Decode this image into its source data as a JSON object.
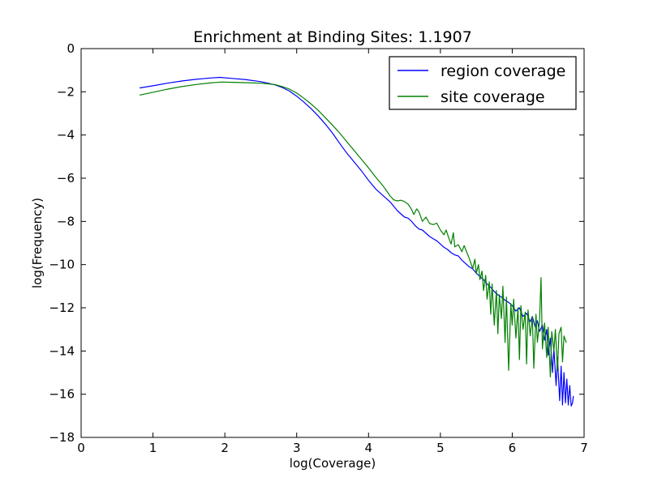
{
  "window": {
    "background": "#ffffff",
    "axes_background": "#ffffff",
    "spine_color": "#000000"
  },
  "chart_data": {
    "type": "line",
    "title": "Enrichment at Binding Sites: 1.1907",
    "xlabel": "log(Coverage)",
    "ylabel": "log(Frequency)",
    "xlim": [
      0,
      7
    ],
    "ylim": [
      -18,
      0
    ],
    "x_ticks": [
      0,
      1,
      2,
      3,
      4,
      5,
      6,
      7
    ],
    "y_ticks": [
      0,
      -2,
      -4,
      -6,
      -8,
      -10,
      -12,
      -14,
      -16,
      -18
    ],
    "grid": false,
    "legend": {
      "position": "upper right"
    },
    "series": [
      {
        "name": "region coverage",
        "color": "#0000ff",
        "points": [
          [
            0.82,
            -1.82
          ],
          [
            1.0,
            -1.72
          ],
          [
            1.2,
            -1.6
          ],
          [
            1.4,
            -1.5
          ],
          [
            1.6,
            -1.42
          ],
          [
            1.8,
            -1.36
          ],
          [
            1.93,
            -1.33
          ],
          [
            2.1,
            -1.38
          ],
          [
            2.3,
            -1.44
          ],
          [
            2.5,
            -1.53
          ],
          [
            2.6,
            -1.6
          ],
          [
            2.7,
            -1.68
          ],
          [
            2.8,
            -1.8
          ],
          [
            2.9,
            -1.97
          ],
          [
            3.0,
            -2.2
          ],
          [
            3.1,
            -2.48
          ],
          [
            3.2,
            -2.78
          ],
          [
            3.3,
            -3.12
          ],
          [
            3.4,
            -3.5
          ],
          [
            3.5,
            -3.92
          ],
          [
            3.6,
            -4.4
          ],
          [
            3.7,
            -4.85
          ],
          [
            3.8,
            -5.25
          ],
          [
            3.9,
            -5.65
          ],
          [
            4.0,
            -6.1
          ],
          [
            4.1,
            -6.5
          ],
          [
            4.2,
            -6.8
          ],
          [
            4.3,
            -7.1
          ],
          [
            4.4,
            -7.5
          ],
          [
            4.45,
            -7.65
          ],
          [
            4.5,
            -7.8
          ],
          [
            4.55,
            -7.85
          ],
          [
            4.6,
            -8.0
          ],
          [
            4.65,
            -8.2
          ],
          [
            4.7,
            -8.35
          ],
          [
            4.75,
            -8.4
          ],
          [
            4.8,
            -8.55
          ],
          [
            4.85,
            -8.7
          ],
          [
            4.9,
            -8.8
          ],
          [
            4.95,
            -8.9
          ],
          [
            5.0,
            -9.05
          ],
          [
            5.05,
            -9.2
          ],
          [
            5.1,
            -9.3
          ],
          [
            5.15,
            -9.45
          ],
          [
            5.2,
            -9.55
          ],
          [
            5.25,
            -9.6
          ],
          [
            5.3,
            -9.8
          ],
          [
            5.35,
            -9.95
          ],
          [
            5.4,
            -10.1
          ],
          [
            5.45,
            -10.2
          ],
          [
            5.5,
            -10.4
          ],
          [
            5.55,
            -10.55
          ],
          [
            5.6,
            -10.7
          ],
          [
            5.65,
            -10.9
          ],
          [
            5.7,
            -11.05
          ],
          [
            5.75,
            -11.25
          ],
          [
            5.8,
            -11.4
          ],
          [
            5.85,
            -11.5
          ],
          [
            5.9,
            -11.65
          ],
          [
            5.95,
            -11.75
          ],
          [
            6.0,
            -11.9
          ],
          [
            6.05,
            -12.15
          ],
          [
            6.1,
            -12.0
          ],
          [
            6.15,
            -12.4
          ],
          [
            6.2,
            -12.25
          ],
          [
            6.25,
            -12.65
          ],
          [
            6.28,
            -12.4
          ],
          [
            6.32,
            -12.9
          ],
          [
            6.35,
            -12.6
          ],
          [
            6.38,
            -13.1
          ],
          [
            6.42,
            -12.8
          ],
          [
            6.45,
            -13.5
          ],
          [
            6.48,
            -13.0
          ],
          [
            6.5,
            -14.2
          ],
          [
            6.53,
            -13.4
          ],
          [
            6.56,
            -15.0
          ],
          [
            6.58,
            -13.9
          ],
          [
            6.61,
            -15.6
          ],
          [
            6.63,
            -14.3
          ],
          [
            6.66,
            -16.3
          ],
          [
            6.68,
            -14.7
          ],
          [
            6.7,
            -16.5
          ],
          [
            6.72,
            -15.0
          ],
          [
            6.74,
            -16.4
          ],
          [
            6.76,
            -15.3
          ],
          [
            6.78,
            -16.5
          ],
          [
            6.8,
            -15.6
          ],
          [
            6.82,
            -16.55
          ],
          [
            6.84,
            -16.4
          ],
          [
            6.85,
            -16.1
          ]
        ]
      },
      {
        "name": "site coverage",
        "color": "#008000",
        "points": [
          [
            0.82,
            -2.15
          ],
          [
            1.0,
            -2.02
          ],
          [
            1.2,
            -1.88
          ],
          [
            1.4,
            -1.76
          ],
          [
            1.6,
            -1.66
          ],
          [
            1.8,
            -1.59
          ],
          [
            1.95,
            -1.55
          ],
          [
            2.1,
            -1.56
          ],
          [
            2.3,
            -1.58
          ],
          [
            2.5,
            -1.6
          ],
          [
            2.6,
            -1.63
          ],
          [
            2.7,
            -1.67
          ],
          [
            2.8,
            -1.76
          ],
          [
            2.9,
            -1.88
          ],
          [
            3.0,
            -2.06
          ],
          [
            3.1,
            -2.3
          ],
          [
            3.2,
            -2.56
          ],
          [
            3.3,
            -2.86
          ],
          [
            3.4,
            -3.2
          ],
          [
            3.5,
            -3.55
          ],
          [
            3.6,
            -3.92
          ],
          [
            3.7,
            -4.32
          ],
          [
            3.8,
            -4.72
          ],
          [
            3.9,
            -5.12
          ],
          [
            4.0,
            -5.52
          ],
          [
            4.1,
            -5.95
          ],
          [
            4.2,
            -6.35
          ],
          [
            4.3,
            -6.82
          ],
          [
            4.35,
            -7.0
          ],
          [
            4.4,
            -7.05
          ],
          [
            4.45,
            -7.02
          ],
          [
            4.5,
            -7.08
          ],
          [
            4.55,
            -7.2
          ],
          [
            4.6,
            -7.45
          ],
          [
            4.63,
            -7.68
          ],
          [
            4.67,
            -7.42
          ],
          [
            4.7,
            -7.55
          ],
          [
            4.75,
            -8.0
          ],
          [
            4.8,
            -7.8
          ],
          [
            4.85,
            -8.1
          ],
          [
            4.9,
            -8.15
          ],
          [
            4.95,
            -8.08
          ],
          [
            5.0,
            -8.4
          ],
          [
            5.05,
            -8.62
          ],
          [
            5.08,
            -8.4
          ],
          [
            5.12,
            -8.8
          ],
          [
            5.15,
            -9.05
          ],
          [
            5.18,
            -8.52
          ],
          [
            5.2,
            -9.18
          ],
          [
            5.25,
            -9.08
          ],
          [
            5.3,
            -9.4
          ],
          [
            5.33,
            -9.12
          ],
          [
            5.37,
            -9.45
          ],
          [
            5.4,
            -9.7
          ],
          [
            5.45,
            -10.18
          ],
          [
            5.48,
            -9.75
          ],
          [
            5.5,
            -10.4
          ],
          [
            5.53,
            -10.0
          ],
          [
            5.55,
            -10.7
          ],
          [
            5.58,
            -10.3
          ],
          [
            5.6,
            -11.2
          ],
          [
            5.63,
            -10.5
          ],
          [
            5.65,
            -11.6
          ],
          [
            5.68,
            -10.8
          ],
          [
            5.7,
            -12.3
          ],
          [
            5.72,
            -10.9
          ],
          [
            5.75,
            -12.8
          ],
          [
            5.78,
            -11.2
          ],
          [
            5.8,
            -13.2
          ],
          [
            5.82,
            -11.4
          ],
          [
            5.85,
            -12.5
          ],
          [
            5.87,
            -11.0
          ],
          [
            5.9,
            -13.6
          ],
          [
            5.92,
            -11.5
          ],
          [
            5.95,
            -14.9
          ],
          [
            5.98,
            -11.8
          ],
          [
            6.0,
            -12.8
          ],
          [
            6.02,
            -11.6
          ],
          [
            6.05,
            -13.4
          ],
          [
            6.08,
            -12.0
          ],
          [
            6.1,
            -14.4
          ],
          [
            6.12,
            -11.9
          ],
          [
            6.15,
            -13.0
          ],
          [
            6.18,
            -12.2
          ],
          [
            6.2,
            -14.6
          ],
          [
            6.22,
            -12.1
          ],
          [
            6.25,
            -13.3
          ],
          [
            6.28,
            -12.4
          ],
          [
            6.3,
            -14.8
          ],
          [
            6.33,
            -12.3
          ],
          [
            6.35,
            -13.6
          ],
          [
            6.38,
            -12.6
          ],
          [
            6.4,
            -10.6
          ],
          [
            6.42,
            -13.9
          ],
          [
            6.45,
            -12.7
          ],
          [
            6.48,
            -14.3
          ],
          [
            6.5,
            -12.9
          ],
          [
            6.53,
            -15.2
          ],
          [
            6.55,
            -13.1
          ],
          [
            6.58,
            -14.0
          ],
          [
            6.6,
            -13.0
          ],
          [
            6.63,
            -14.9
          ],
          [
            6.65,
            -13.2
          ],
          [
            6.68,
            -12.9
          ],
          [
            6.7,
            -14.5
          ],
          [
            6.72,
            -13.3
          ],
          [
            6.75,
            -13.6
          ]
        ]
      }
    ]
  }
}
